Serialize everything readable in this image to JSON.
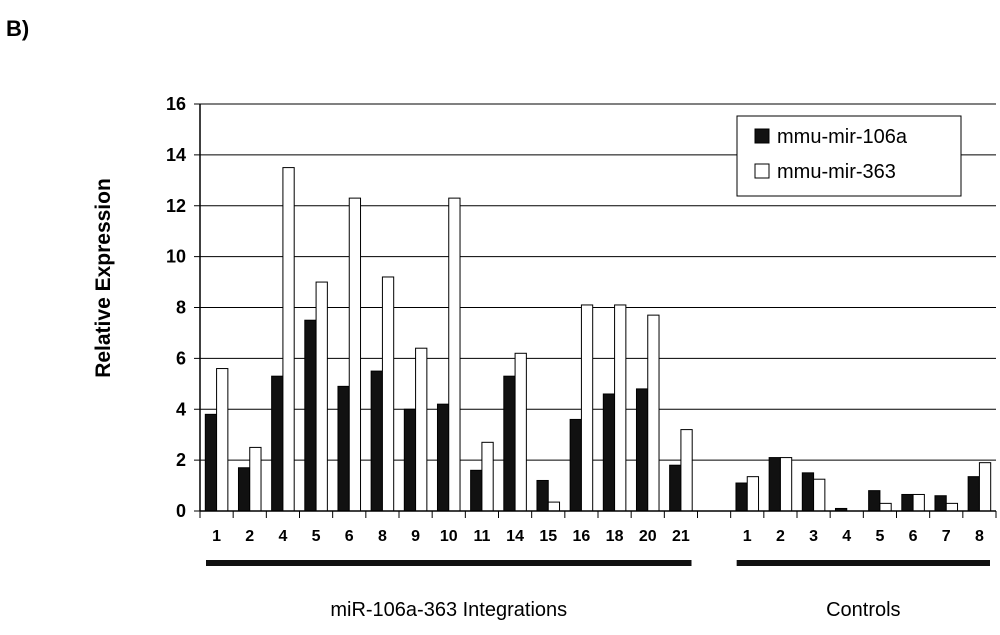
{
  "panel_label": "B)",
  "chart_data": {
    "type": "bar",
    "ylabel": "Relative Expression",
    "xlabel": "",
    "ylim": [
      0,
      16
    ],
    "yticks": [
      0,
      2,
      4,
      6,
      8,
      10,
      12,
      14,
      16
    ],
    "grid": true,
    "legend_position": "top-right",
    "groups": [
      {
        "label": "miR-106a-363 Integrations",
        "categories": [
          "1",
          "2",
          "4",
          "5",
          "6",
          "8",
          "9",
          "10",
          "11",
          "14",
          "15",
          "16",
          "18",
          "20",
          "21"
        ],
        "series": [
          {
            "name": "mmu-mir-106a",
            "values": [
              3.8,
              1.7,
              5.3,
              7.5,
              4.9,
              5.5,
              4.0,
              4.2,
              1.6,
              5.3,
              1.2,
              3.6,
              4.6,
              4.8,
              1.8
            ]
          },
          {
            "name": "mmu-mir-363",
            "values": [
              5.6,
              2.5,
              13.5,
              9.0,
              12.3,
              9.2,
              6.4,
              12.3,
              2.7,
              6.2,
              0.35,
              8.1,
              8.1,
              7.7,
              3.2
            ]
          }
        ]
      },
      {
        "label": "Controls",
        "categories": [
          "1",
          "2",
          "3",
          "4",
          "5",
          "6",
          "7",
          "8"
        ],
        "series": [
          {
            "name": "mmu-mir-106a",
            "values": [
              1.1,
              2.1,
              1.5,
              0.1,
              0.8,
              0.65,
              0.6,
              1.35
            ]
          },
          {
            "name": "mmu-mir-363",
            "values": [
              1.35,
              2.1,
              1.25,
              0.0,
              0.3,
              0.65,
              0.3,
              1.9
            ]
          }
        ]
      }
    ],
    "series_colors": {
      "mmu-mir-106a": "#111111",
      "mmu-mir-363": "#ffffff"
    }
  }
}
